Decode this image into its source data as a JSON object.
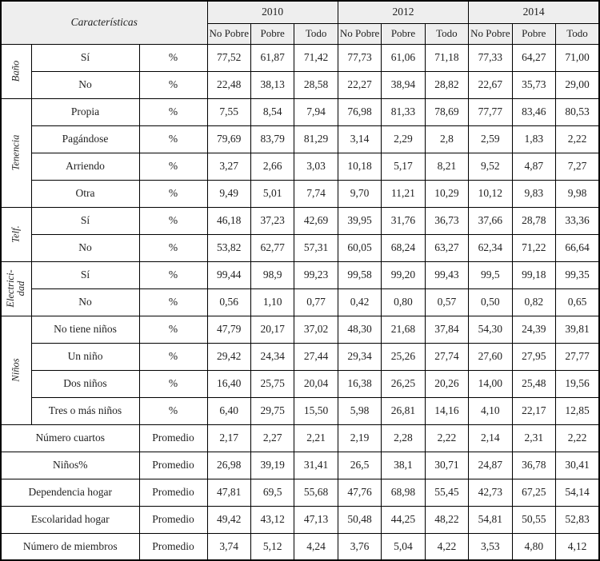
{
  "table": {
    "corner_label": "Características",
    "year_groups": [
      "2010",
      "2012",
      "2014"
    ],
    "sub_headers": [
      "No Pobre",
      "Pobre",
      "Todo"
    ],
    "groups": [
      {
        "label": "Baño",
        "rows": [
          {
            "name": "Sí",
            "unit": "%",
            "values": [
              "77,52",
              "61,87",
              "71,42",
              "77,73",
              "61,06",
              "71,18",
              "77,33",
              "64,27",
              "71,00"
            ]
          },
          {
            "name": "No",
            "unit": "%",
            "values": [
              "22,48",
              "38,13",
              "28,58",
              "22,27",
              "38,94",
              "28,82",
              "22,67",
              "35,73",
              "29,00"
            ]
          }
        ]
      },
      {
        "label": "Tenencia",
        "rows": [
          {
            "name": "Propia",
            "unit": "%",
            "values": [
              "7,55",
              "8,54",
              "7,94",
              "76,98",
              "81,33",
              "78,69",
              "77,77",
              "83,46",
              "80,53"
            ]
          },
          {
            "name": "Pagándose",
            "unit": "%",
            "values": [
              "79,69",
              "83,79",
              "81,29",
              "3,14",
              "2,29",
              "2,8",
              "2,59",
              "1,83",
              "2,22"
            ]
          },
          {
            "name": "Arriendo",
            "unit": "%",
            "values": [
              "3,27",
              "2,66",
              "3,03",
              "10,18",
              "5,17",
              "8,21",
              "9,52",
              "4,87",
              "7,27"
            ]
          },
          {
            "name": "Otra",
            "unit": "%",
            "values": [
              "9,49",
              "5,01",
              "7,74",
              "9,70",
              "11,21",
              "10,29",
              "10,12",
              "9,83",
              "9,98"
            ]
          }
        ]
      },
      {
        "label": "Telf.",
        "rows": [
          {
            "name": "Sí",
            "unit": "%",
            "values": [
              "46,18",
              "37,23",
              "42,69",
              "39,95",
              "31,76",
              "36,73",
              "37,66",
              "28,78",
              "33,36"
            ]
          },
          {
            "name": "No",
            "unit": "%",
            "values": [
              "53,82",
              "62,77",
              "57,31",
              "60,05",
              "68,24",
              "63,27",
              "62,34",
              "71,22",
              "66,64"
            ]
          }
        ]
      },
      {
        "label": "Electrici-\ndad",
        "rows": [
          {
            "name": "Sí",
            "unit": "%",
            "values": [
              "99,44",
              "98,9",
              "99,23",
              "99,58",
              "99,20",
              "99,43",
              "99,5",
              "99,18",
              "99,35"
            ]
          },
          {
            "name": "No",
            "unit": "%",
            "values": [
              "0,56",
              "1,10",
              "0,77",
              "0,42",
              "0,80",
              "0,57",
              "0,50",
              "0,82",
              "0,65"
            ]
          }
        ]
      },
      {
        "label": "Niños",
        "rows": [
          {
            "name": "No tiene niños",
            "unit": "%",
            "values": [
              "47,79",
              "20,17",
              "37,02",
              "48,30",
              "21,68",
              "37,84",
              "54,30",
              "24,39",
              "39,81"
            ]
          },
          {
            "name": "Un niño",
            "unit": "%",
            "values": [
              "29,42",
              "24,34",
              "27,44",
              "29,34",
              "25,26",
              "27,74",
              "27,60",
              "27,95",
              "27,77"
            ]
          },
          {
            "name": "Dos niños",
            "unit": "%",
            "values": [
              "16,40",
              "25,75",
              "20,04",
              "16,38",
              "26,25",
              "20,26",
              "14,00",
              "25,48",
              "19,56"
            ]
          },
          {
            "name": "Tres o más niños",
            "unit": "%",
            "values": [
              "6,40",
              "29,75",
              "15,50",
              "5,98",
              "26,81",
              "14,16",
              "4,10",
              "22,17",
              "12,85"
            ]
          }
        ]
      },
      {
        "label": "",
        "rows": [
          {
            "name": "Número cuartos",
            "unit": "Promedio",
            "values": [
              "2,17",
              "2,27",
              "2,21",
              "2,19",
              "2,28",
              "2,22",
              "2,14",
              "2,31",
              "2,22"
            ]
          },
          {
            "name": "Niños%",
            "unit": "Promedio",
            "values": [
              "26,98",
              "39,19",
              "31,41",
              "26,5",
              "38,1",
              "30,71",
              "24,87",
              "36,78",
              "30,41"
            ]
          },
          {
            "name": "Dependencia hogar",
            "unit": "Promedio",
            "values": [
              "47,81",
              "69,5",
              "55,68",
              "47,76",
              "68,98",
              "55,45",
              "42,73",
              "67,25",
              "54,14"
            ]
          },
          {
            "name": "Escolaridad hogar",
            "unit": "Promedio",
            "values": [
              "49,42",
              "43,12",
              "47,13",
              "50,48",
              "44,25",
              "48,22",
              "54,81",
              "50,55",
              "52,83"
            ]
          },
          {
            "name": "Número de miembros",
            "unit": "Promedio",
            "values": [
              "3,74",
              "5,12",
              "4,24",
              "3,76",
              "5,04",
              "4,22",
              "3,53",
              "4,80",
              "4,12"
            ]
          }
        ]
      }
    ]
  },
  "colors": {
    "header_bg": "#eeeeee",
    "border": "#000000",
    "text": "#222222"
  }
}
